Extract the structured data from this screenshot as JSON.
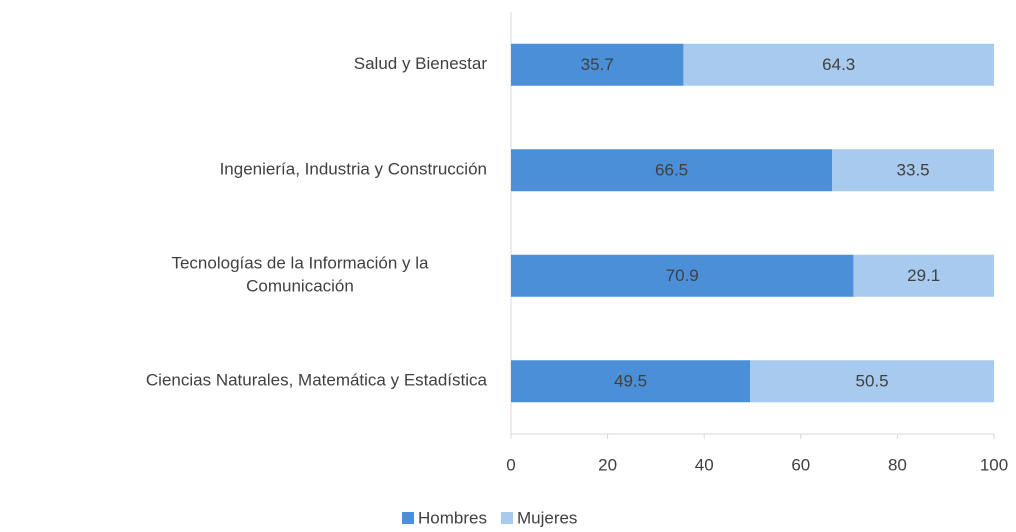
{
  "chart_data": {
    "type": "stacked_barh",
    "categories": [
      "Salud y Bienestar",
      "Ingeniería, Industria y Construcción",
      "Tecnologías de la Información y la\nComunicación",
      "Ciencias Naturales, Matemática y Estadística"
    ],
    "series": [
      {
        "name": "Hombres",
        "color": "#4a8fd8",
        "values": [
          35.7,
          66.5,
          70.9,
          49.5
        ]
      },
      {
        "name": "Mujeres",
        "color": "#a8caee",
        "values": [
          64.3,
          33.5,
          29.1,
          50.5
        ]
      }
    ],
    "xlim": [
      0,
      100
    ],
    "xticks": [
      0,
      20,
      40,
      60,
      80,
      100
    ],
    "legend": "bottom"
  }
}
